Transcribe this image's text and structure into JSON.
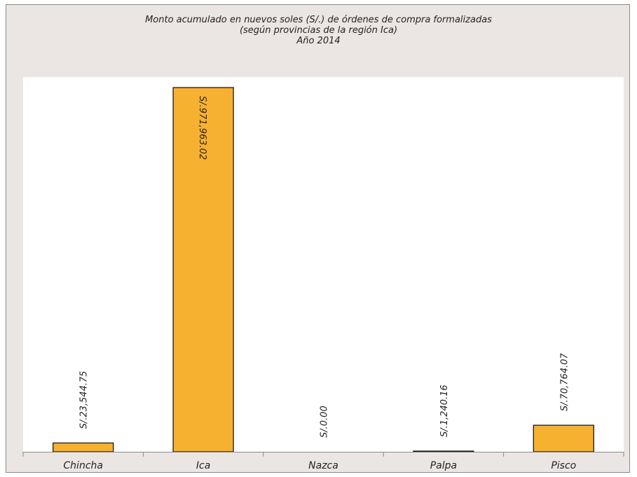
{
  "chart_data": {
    "type": "bar",
    "title_lines": [
      "Monto acumulado en nuevos soles (S/.) de órdenes de compra formalizadas",
      "(según provincias de la región Ica)",
      "Año 2014"
    ],
    "categories": [
      "Chincha",
      "Ica",
      "Nazca",
      "Palpa",
      "Pisco"
    ],
    "values": [
      23544.75,
      971963.02,
      0.0,
      1240.16,
      70764.07
    ],
    "data_labels": [
      "S/.23,544.75",
      "S/.971,963.02",
      "S/.0.00",
      "S/.1,240.16",
      "S/.70,764.07"
    ],
    "ylim": [
      0,
      1000000
    ],
    "grid": false,
    "legend": false,
    "colors": {
      "bar_fill": "#f7b130",
      "bar_stroke": "#1a1a1a",
      "frame_bg": "#ebe6e3",
      "plot_bg": "#ffffff",
      "axis": "#8a8a8a"
    }
  }
}
